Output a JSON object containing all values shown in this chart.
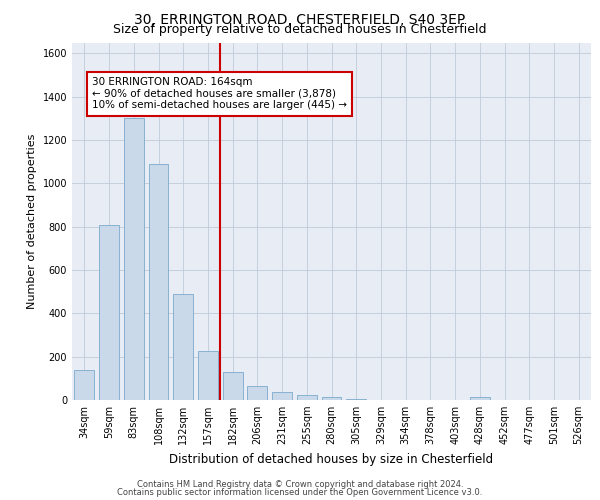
{
  "title_line1": "30, ERRINGTON ROAD, CHESTERFIELD, S40 3EP",
  "title_line2": "Size of property relative to detached houses in Chesterfield",
  "xlabel": "Distribution of detached houses by size in Chesterfield",
  "ylabel": "Number of detached properties",
  "footer_line1": "Contains HM Land Registry data © Crown copyright and database right 2024.",
  "footer_line2": "Contains public sector information licensed under the Open Government Licence v3.0.",
  "categories": [
    "34sqm",
    "59sqm",
    "83sqm",
    "108sqm",
    "132sqm",
    "157sqm",
    "182sqm",
    "206sqm",
    "231sqm",
    "255sqm",
    "280sqm",
    "305sqm",
    "329sqm",
    "354sqm",
    "378sqm",
    "403sqm",
    "428sqm",
    "452sqm",
    "477sqm",
    "501sqm",
    "526sqm"
  ],
  "values": [
    140,
    810,
    1300,
    1090,
    490,
    225,
    130,
    65,
    38,
    25,
    14,
    5,
    0,
    0,
    0,
    0,
    14,
    0,
    0,
    0,
    0
  ],
  "bar_color": "#c9d9ea",
  "bar_edge_color": "#7aaacb",
  "vline_x_index": 5,
  "vline_color": "#cc0000",
  "annotation_line1": "30 ERRINGTON ROAD: 164sqm",
  "annotation_line2": "← 90% of detached houses are smaller (3,878)",
  "annotation_line3": "10% of semi-detached houses are larger (445) →",
  "annotation_box_color": "#ffffff",
  "annotation_box_edge_color": "#cc0000",
  "ylim": [
    0,
    1650
  ],
  "yticks": [
    0,
    200,
    400,
    600,
    800,
    1000,
    1200,
    1400,
    1600
  ],
  "grid_color": "#c0cad8",
  "bg_color": "#e8edf5",
  "bar_width": 0.8,
  "title1_fontsize": 10,
  "title2_fontsize": 9,
  "ylabel_fontsize": 8,
  "xlabel_fontsize": 8.5,
  "tick_fontsize": 7,
  "footer_fontsize": 6,
  "annot_fontsize": 7.5
}
